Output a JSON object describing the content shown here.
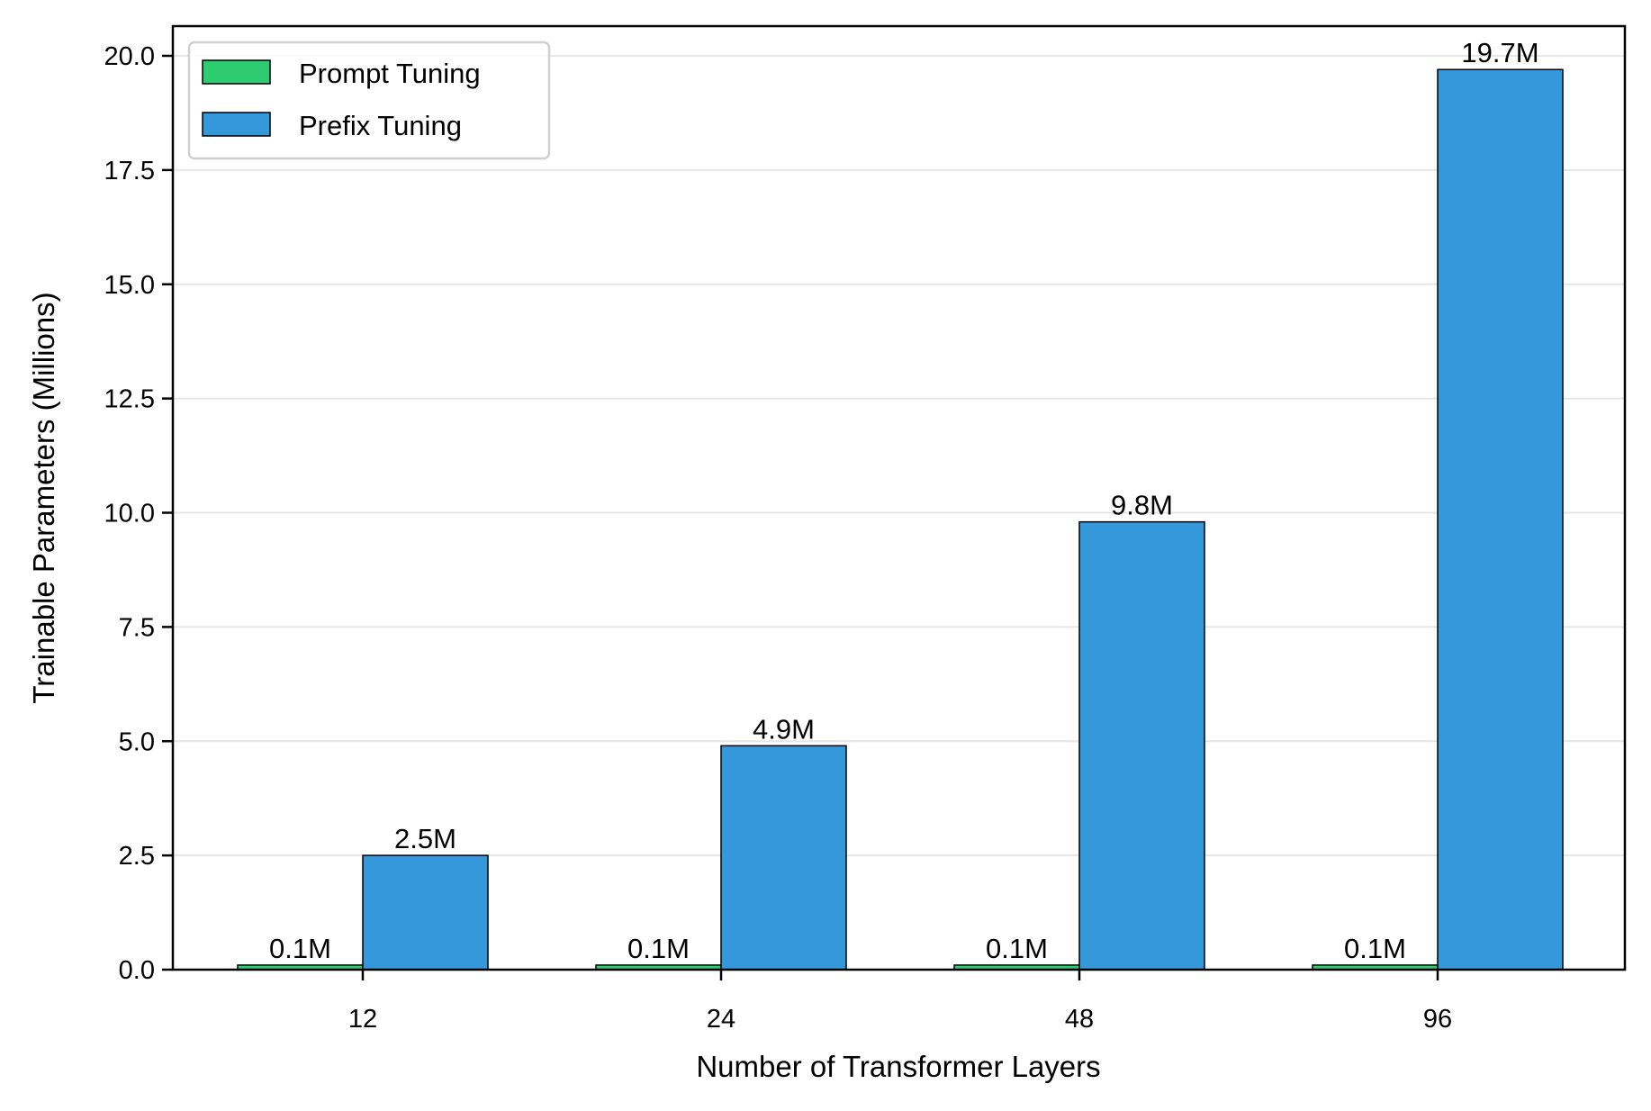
{
  "chart_data": {
    "type": "bar",
    "title": "",
    "xlabel": "Number of Transformer Layers",
    "ylabel": "Trainable Parameters (Millions)",
    "categories": [
      "12",
      "24",
      "48",
      "96"
    ],
    "series": [
      {
        "name": "Prompt Tuning",
        "color": "#2ecc71",
        "values": [
          0.1,
          0.1,
          0.1,
          0.1
        ],
        "labels": [
          "0.1M",
          "0.1M",
          "0.1M",
          "0.1M"
        ]
      },
      {
        "name": "Prefix Tuning",
        "color": "#3498db",
        "values": [
          2.5,
          4.9,
          9.8,
          19.7
        ],
        "labels": [
          "2.5M",
          "4.9M",
          "9.8M",
          "19.7M"
        ]
      }
    ],
    "ylim": [
      0,
      20.8
    ],
    "yticks": [
      "0.0",
      "2.5",
      "5.0",
      "7.5",
      "10.0",
      "12.5",
      "15.0",
      "17.5",
      "20.0"
    ],
    "grid": {
      "y": true,
      "x": false
    },
    "legend_position": "upper left"
  }
}
